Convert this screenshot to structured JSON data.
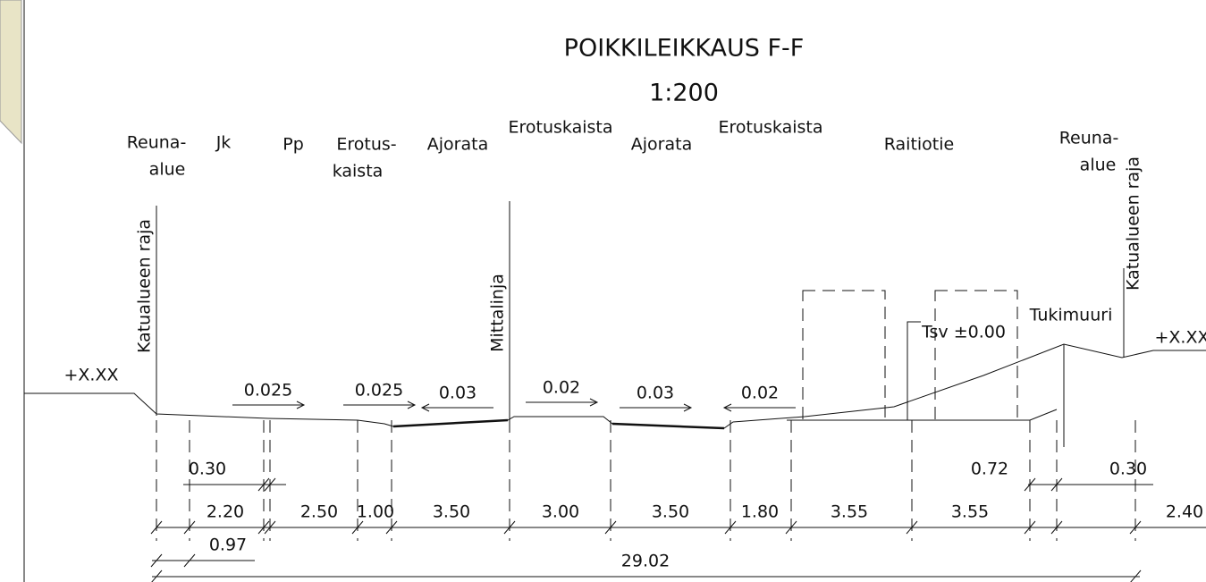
{
  "header": {
    "title": "POIKKILEIKKAUS F-F",
    "scale": "1:200"
  },
  "zones": [
    "Reuna-",
    "alue",
    "Jk",
    "Pp",
    "Erotus-",
    "kaista",
    "Ajorata",
    "Erotuskaista",
    "Ajorata",
    "Erotuskaista",
    "Raitiotie",
    "Reuna-",
    "alue"
  ],
  "vertical_labels": [
    "Katualueen raja",
    "Mittalinja",
    "Katualueen raja"
  ],
  "levels": [
    "+X.XX",
    "+X.XX",
    "Tsv ±0.00"
  ],
  "structure": "Tukimuuri",
  "slopes": [
    "0.025",
    "0.025",
    "0.03",
    "0.02",
    "0.03",
    "0.02"
  ],
  "dims_top": [
    "0.30",
    "0.72",
    "0.30"
  ],
  "dims_main": [
    "2.20",
    "2.50",
    "1.00",
    "3.50",
    "3.00",
    "3.50",
    "1.80",
    "3.55",
    "3.55",
    "2.40"
  ],
  "dims_bottom": [
    "0.97",
    "29.02"
  ]
}
